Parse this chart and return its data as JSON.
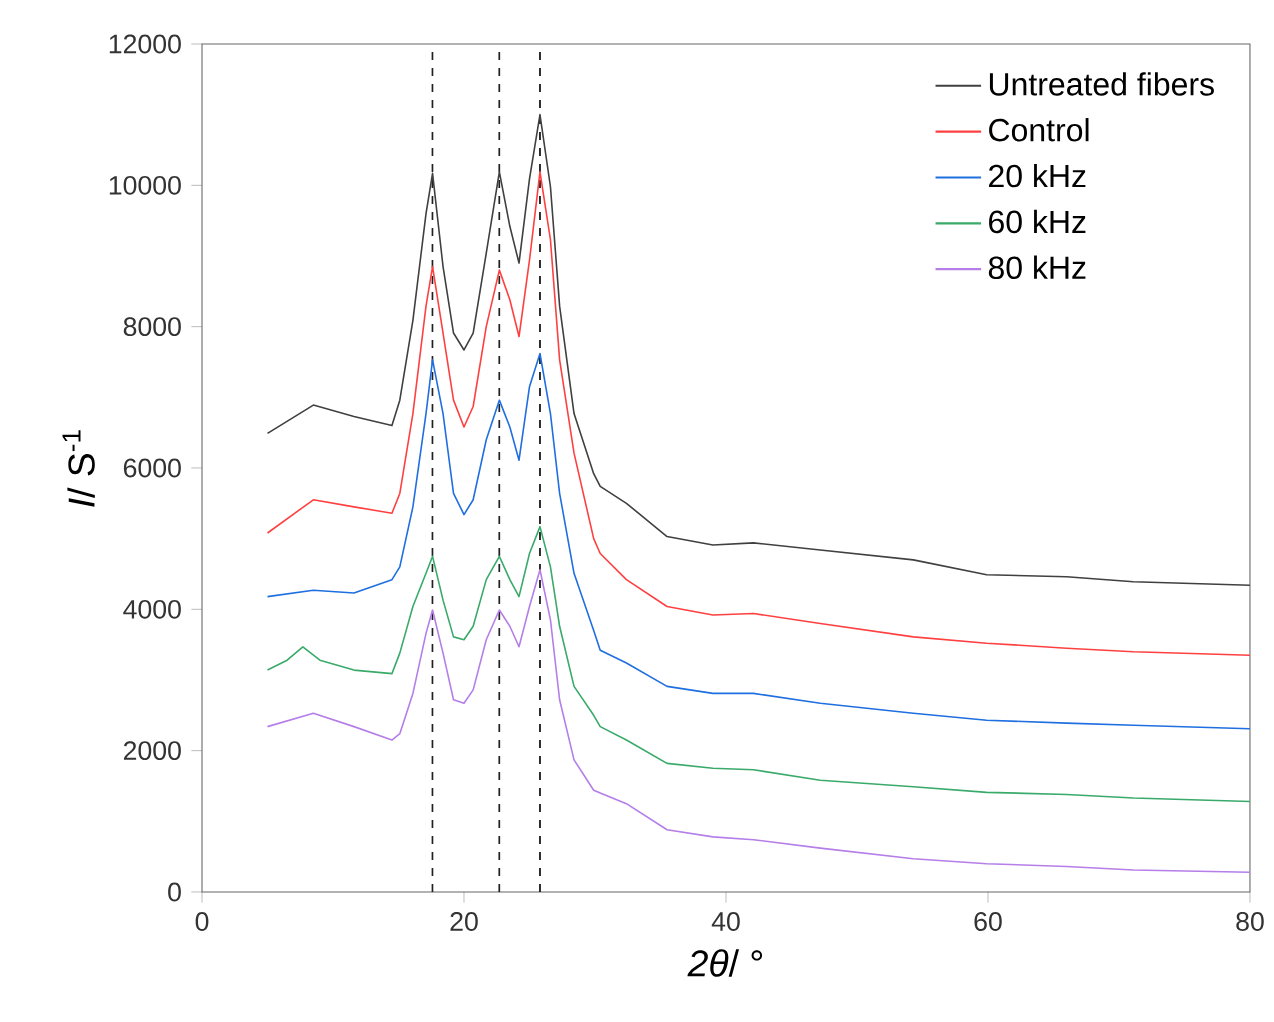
{
  "chart_data": {
    "type": "line",
    "xlabel": "*2θ*/ °",
    "ylabel": "*I*/ S$^{-1}$",
    "x": [
      5,
      8.5,
      11.6,
      14.5,
      15.1,
      16.1,
      17.1,
      17.6,
      18.4,
      19.2,
      20.0,
      20.7,
      21.7,
      22.7,
      23.5,
      24.2,
      25.0,
      25.8,
      26.6,
      27.3,
      28.4,
      29.9,
      30.4,
      32.4,
      35.5,
      39,
      42.1,
      47.2,
      54.3,
      59.9,
      66,
      71.1,
      80
    ],
    "series": [
      {
        "name": "Untreated fibers",
        "color": "#404040",
        "values": [
          6490,
          6890,
          6730,
          6600,
          6960,
          8090,
          9600,
          10170,
          8850,
          7910,
          7670,
          7910,
          9040,
          10190,
          9420,
          8900,
          10090,
          11000,
          9980,
          8290,
          6770,
          5920,
          5740,
          5500,
          5030,
          4910,
          4940,
          4840,
          4700,
          4490,
          4460,
          4390,
          4340
        ]
      },
      {
        "name": "Control",
        "color": "#ff4040",
        "values": [
          5080,
          5550,
          5450,
          5360,
          5640,
          6770,
          8290,
          8850,
          7910,
          6960,
          6580,
          6870,
          8000,
          8800,
          8380,
          7860,
          8940,
          10190,
          9230,
          7530,
          6210,
          5000,
          4790,
          4420,
          4040,
          3920,
          3940,
          3800,
          3610,
          3520,
          3450,
          3400,
          3350
        ]
      },
      {
        "name": "20 kHz",
        "color": "#1f6fe0",
        "values": [
          4180,
          4270,
          4230,
          4420,
          4600,
          5450,
          6770,
          7530,
          6770,
          5640,
          5340,
          5550,
          6400,
          6960,
          6580,
          6110,
          7150,
          7620,
          6770,
          5640,
          4510,
          3700,
          3420,
          3240,
          2910,
          2810,
          2810,
          2670,
          2530,
          2430,
          2390,
          2360,
          2310
        ]
      },
      {
        "name": "60 kHz",
        "color": "#3aaa6a",
        "x": [
          5,
          6.5,
          7.7,
          9,
          11.6,
          14.5,
          15.1,
          16.1,
          17.1,
          17.6,
          18.4,
          19.2,
          20.0,
          20.7,
          21.7,
          22.7,
          23.5,
          24.2,
          25.0,
          25.8,
          26.6,
          27.3,
          28.4,
          29.9,
          30.4,
          32.4,
          35.5,
          39,
          42.1,
          47.2,
          54.3,
          59.9,
          66,
          71.1,
          80
        ],
        "values": [
          3140,
          3280,
          3470,
          3280,
          3140,
          3090,
          3380,
          4040,
          4510,
          4750,
          4130,
          3610,
          3570,
          3760,
          4420,
          4750,
          4420,
          4180,
          4790,
          5170,
          4600,
          3760,
          2910,
          2500,
          2340,
          2150,
          1820,
          1750,
          1730,
          1580,
          1490,
          1410,
          1380,
          1330,
          1280
        ]
      },
      {
        "name": "80 kHz",
        "color": "#b57ee8",
        "values": [
          2340,
          2530,
          2340,
          2150,
          2240,
          2810,
          3660,
          3990,
          3380,
          2720,
          2670,
          2860,
          3570,
          3990,
          3760,
          3470,
          4040,
          4560,
          3850,
          2720,
          1870,
          1440,
          1400,
          1250,
          880,
          780,
          740,
          620,
          470,
          400,
          360,
          310,
          280
        ]
      }
    ],
    "ref_lines": [
      {
        "axis": "x",
        "value": 17.6,
        "color": "#202020",
        "line_style": "dashed"
      },
      {
        "axis": "x",
        "value": 22.7,
        "color": "#202020",
        "line_style": "dashed"
      },
      {
        "axis": "x",
        "value": 25.8,
        "color": "#202020",
        "line_style": "dashed"
      }
    ],
    "xlim": [
      0,
      80
    ],
    "ylim": [
      0,
      12000
    ],
    "xticks": [
      0,
      20,
      40,
      60,
      80
    ],
    "yticks": [
      0,
      2000,
      4000,
      6000,
      8000,
      10000,
      12000
    ],
    "grid": false,
    "legend": "top right",
    "marker": "none",
    "line_style": "solid"
  }
}
